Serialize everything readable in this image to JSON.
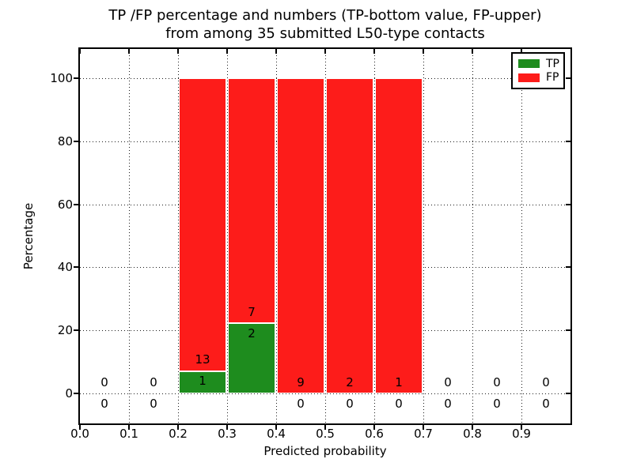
{
  "chart_data": {
    "type": "bar",
    "stacked": true,
    "title_lines": [
      "TP /FP percentage and numbers (TP-bottom value, FP-upper)",
      "from among 35 submitted L50-type contacts"
    ],
    "xlabel": "Predicted probability",
    "ylabel": "Percentage",
    "xlim": [
      0.0,
      1.0
    ],
    "ylim": [
      -9.5,
      109.3
    ],
    "xticks": [
      "0.0",
      "0.1",
      "0.2",
      "0.3",
      "0.4",
      "0.5",
      "0.6",
      "0.7",
      "0.8",
      "0.9"
    ],
    "yticks": [
      0,
      20,
      40,
      60,
      80,
      100
    ],
    "grid": {
      "style": "dotted",
      "color": "#000000"
    },
    "bin_edges": [
      0.0,
      0.1,
      0.2,
      0.3,
      0.4,
      0.5,
      0.6,
      0.7,
      0.8,
      0.9,
      1.0
    ],
    "series": [
      {
        "name": "TP",
        "color": "#1e8c1e",
        "counts": [
          0,
          0,
          1,
          2,
          0,
          0,
          0,
          0,
          0,
          0
        ],
        "pct": [
          0,
          0,
          7.14,
          22.22,
          0,
          0,
          0,
          0,
          0,
          0
        ]
      },
      {
        "name": "FP",
        "color": "#fd1c1a",
        "counts": [
          0,
          0,
          13,
          7,
          9,
          2,
          1,
          0,
          0,
          0
        ],
        "pct": [
          0,
          0,
          92.86,
          77.78,
          100,
          100,
          100,
          0,
          0,
          0
        ]
      }
    ],
    "legend": {
      "position": "upper right",
      "entries": [
        {
          "label": "TP",
          "color": "#1e8c1e"
        },
        {
          "label": "FP",
          "color": "#fd1c1a"
        }
      ]
    }
  }
}
